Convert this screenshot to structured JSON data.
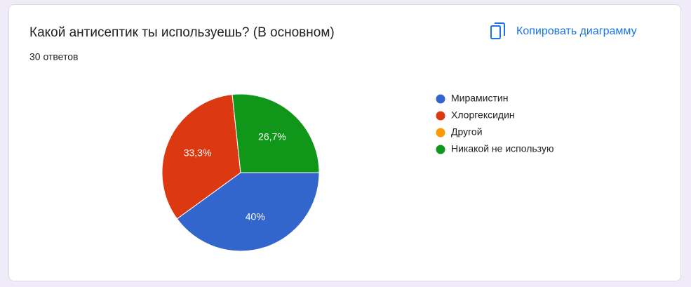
{
  "chart_data": {
    "type": "pie",
    "title": "Какой антисептик ты используешь? (В основном)",
    "subtitle": "30 ответов",
    "categories": [
      "Мирамистин",
      "Хлоргексидин",
      "Другой",
      "Никакой не использую"
    ],
    "values": [
      40,
      33.3,
      0,
      26.7
    ],
    "value_labels": [
      "40%",
      "33,3%",
      null,
      "26,7%"
    ],
    "colors": [
      "#3366cc",
      "#dc3912",
      "#ff9900",
      "#109618"
    ],
    "legend": "right"
  },
  "copy_button": "Копировать диаграмму"
}
